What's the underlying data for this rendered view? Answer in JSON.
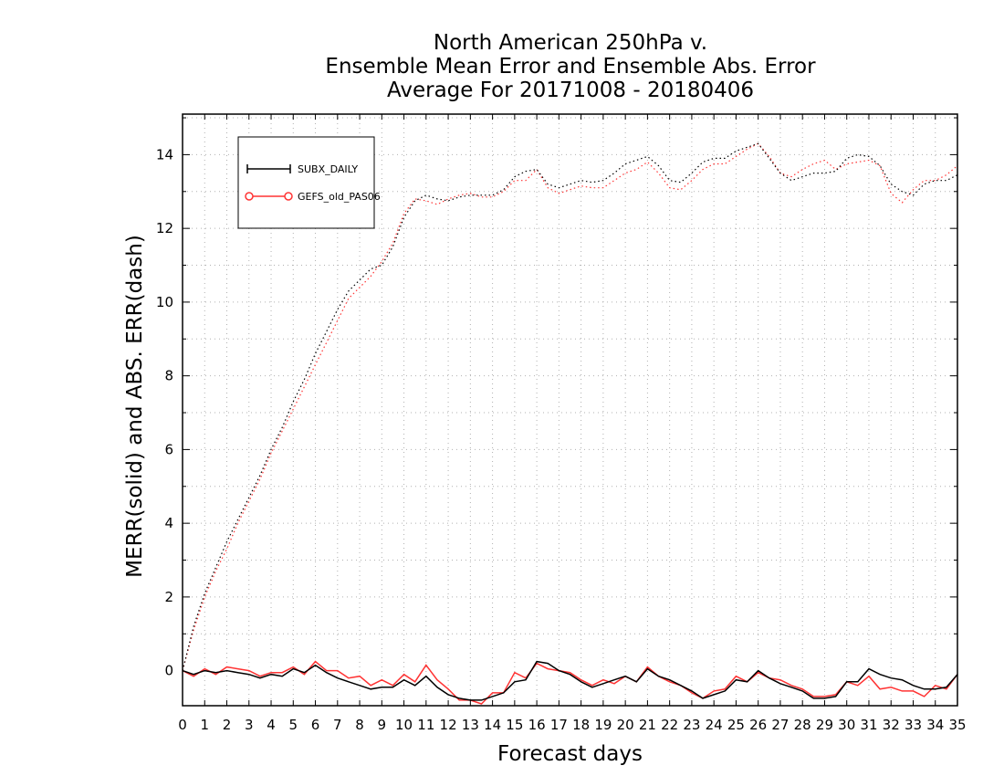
{
  "chart_data": {
    "type": "line",
    "title": [
      "North American 250hPa v.",
      "Ensemble Mean Error and Ensemble Abs. Error",
      "Average For 20171008 - 20180406"
    ],
    "xlabel": "Forecast days",
    "ylabel": "MERR(solid) and ABS. ERR(dash)",
    "xlim": [
      0,
      35
    ],
    "ylim": [
      -0.95,
      15.1
    ],
    "x_ticks": [
      0,
      1,
      2,
      3,
      4,
      5,
      6,
      7,
      8,
      9,
      10,
      11,
      12,
      13,
      14,
      15,
      16,
      17,
      18,
      19,
      20,
      21,
      22,
      23,
      24,
      25,
      26,
      27,
      28,
      29,
      30,
      31,
      32,
      33,
      34,
      35
    ],
    "y_ticks": [
      0,
      2,
      4,
      6,
      8,
      10,
      12,
      14
    ],
    "grid": true,
    "legend_position": "top-left",
    "x": [
      0,
      0.5,
      1,
      1.5,
      2,
      2.5,
      3,
      3.5,
      4,
      4.5,
      5,
      5.5,
      6,
      6.5,
      7,
      7.5,
      8,
      8.5,
      9,
      9.5,
      10,
      10.5,
      11,
      11.5,
      12,
      12.5,
      13,
      13.5,
      14,
      14.5,
      15,
      15.5,
      16,
      16.5,
      17,
      17.5,
      18,
      18.5,
      19,
      19.5,
      20,
      20.5,
      21,
      21.5,
      22,
      22.5,
      23,
      23.5,
      24,
      24.5,
      25,
      25.5,
      26,
      26.5,
      27,
      27.5,
      28,
      28.5,
      29,
      29.5,
      30,
      30.5,
      31,
      31.5,
      32,
      32.5,
      33,
      33.5,
      34,
      34.5,
      35
    ],
    "series": [
      {
        "name": "SUBX_DAILY",
        "color": "#000000",
        "marker": "plus",
        "mean_error": [
          0,
          -0.1,
          0,
          -0.05,
          0,
          -0.05,
          -0.1,
          -0.2,
          -0.1,
          -0.15,
          0.05,
          -0.05,
          0.15,
          -0.05,
          -0.2,
          -0.3,
          -0.4,
          -0.5,
          -0.45,
          -0.45,
          -0.25,
          -0.4,
          -0.15,
          -0.45,
          -0.65,
          -0.75,
          -0.8,
          -0.8,
          -0.7,
          -0.6,
          -0.3,
          -0.25,
          0.25,
          0.2,
          0,
          -0.1,
          -0.3,
          -0.45,
          -0.35,
          -0.25,
          -0.15,
          -0.3,
          0.05,
          -0.15,
          -0.25,
          -0.4,
          -0.55,
          -0.75,
          -0.65,
          -0.55,
          -0.25,
          -0.3,
          0,
          -0.2,
          -0.35,
          -0.45,
          -0.55,
          -0.75,
          -0.75,
          -0.7,
          -0.3,
          -0.3,
          0.05,
          -0.1,
          -0.2,
          -0.25,
          -0.4,
          -0.5,
          -0.5,
          -0.45,
          -0.1
        ],
        "abs_error": [
          0,
          1.2,
          2.1,
          2.8,
          3.5,
          4.1,
          4.7,
          5.3,
          6.0,
          6.6,
          7.3,
          7.9,
          8.6,
          9.2,
          9.8,
          10.3,
          10.6,
          10.9,
          11.0,
          11.5,
          12.3,
          12.75,
          12.9,
          12.8,
          12.75,
          12.85,
          12.9,
          12.9,
          12.9,
          13.05,
          13.4,
          13.55,
          13.6,
          13.2,
          13.1,
          13.2,
          13.3,
          13.25,
          13.3,
          13.5,
          13.75,
          13.85,
          13.95,
          13.7,
          13.3,
          13.25,
          13.5,
          13.8,
          13.9,
          13.9,
          14.1,
          14.2,
          14.3,
          13.9,
          13.5,
          13.3,
          13.4,
          13.5,
          13.5,
          13.55,
          13.9,
          14.0,
          13.95,
          13.7,
          13.2,
          13.0,
          12.9,
          13.2,
          13.3,
          13.3,
          13.45
        ]
      },
      {
        "name": "GEFS_old_PAS06",
        "color": "#ff3333",
        "marker": "circle",
        "mean_error": [
          0,
          -0.15,
          0.05,
          -0.1,
          0.1,
          0.05,
          0,
          -0.15,
          -0.05,
          -0.05,
          0.1,
          -0.1,
          0.25,
          0,
          0,
          -0.2,
          -0.15,
          -0.4,
          -0.25,
          -0.4,
          -0.1,
          -0.3,
          0.15,
          -0.25,
          -0.5,
          -0.8,
          -0.8,
          -0.9,
          -0.6,
          -0.6,
          -0.05,
          -0.2,
          0.2,
          0.05,
          0,
          -0.05,
          -0.25,
          -0.4,
          -0.25,
          -0.35,
          -0.15,
          -0.3,
          0.1,
          -0.15,
          -0.3,
          -0.4,
          -0.6,
          -0.75,
          -0.55,
          -0.5,
          -0.15,
          -0.3,
          -0.05,
          -0.2,
          -0.25,
          -0.4,
          -0.5,
          -0.7,
          -0.7,
          -0.65,
          -0.3,
          -0.4,
          -0.15,
          -0.5,
          -0.45,
          -0.55,
          -0.55,
          -0.7,
          -0.4,
          -0.5,
          -0.1
        ],
        "abs_error": [
          0,
          1.1,
          2.0,
          2.7,
          3.3,
          4.0,
          4.6,
          5.2,
          5.9,
          6.5,
          7.1,
          7.7,
          8.3,
          8.9,
          9.5,
          10.1,
          10.4,
          10.7,
          11.1,
          11.6,
          12.4,
          12.8,
          12.75,
          12.65,
          12.8,
          12.9,
          12.95,
          12.85,
          12.85,
          13.0,
          13.3,
          13.3,
          13.6,
          13.1,
          12.95,
          13.05,
          13.15,
          13.1,
          13.1,
          13.3,
          13.5,
          13.6,
          13.8,
          13.5,
          13.1,
          13.05,
          13.3,
          13.6,
          13.75,
          13.75,
          13.95,
          14.15,
          14.3,
          13.95,
          13.5,
          13.4,
          13.6,
          13.75,
          13.85,
          13.6,
          13.75,
          13.8,
          13.85,
          13.7,
          12.95,
          12.7,
          13.05,
          13.3,
          13.3,
          13.45,
          13.7
        ]
      }
    ]
  }
}
